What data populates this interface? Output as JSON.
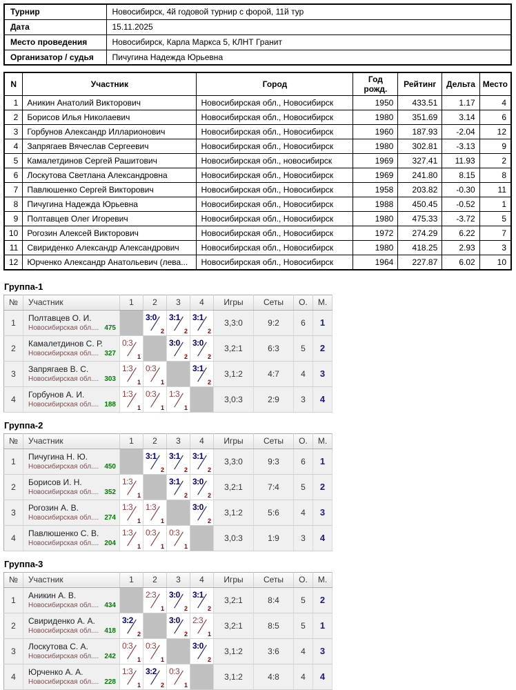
{
  "info": {
    "rows": [
      {
        "label": "Турнир",
        "value": "Новосибирск, 4й годовой турнир с форой, 11й тур"
      },
      {
        "label": "Дата",
        "value": "15.11.2025"
      },
      {
        "label": "Место проведения",
        "value": "Новосибирск, Карла Маркса 5, КЛНТ Гранит"
      },
      {
        "label": "Организатор / судья",
        "value": "Пичугина Надежда Юрьевна"
      }
    ]
  },
  "participants": {
    "headers": [
      "N",
      "Участник",
      "Город",
      "Год рожд.",
      "Рейтинг",
      "Дельта",
      "Место"
    ],
    "rows": [
      {
        "n": "1",
        "name": "Аникин Анатолий Викторович",
        "city": "Новосибирская обл., Новосибирск",
        "year": "1950",
        "rating": "433.51",
        "delta": "1.17",
        "place": "4"
      },
      {
        "n": "2",
        "name": "Борисов Илья Николаевич",
        "city": "Новосибирская обл., Новосибирск",
        "year": "1980",
        "rating": "351.69",
        "delta": "3.14",
        "place": "6"
      },
      {
        "n": "3",
        "name": "Горбунов Александр Илларионович",
        "city": "Новосибирская обл., Новосибирск",
        "year": "1960",
        "rating": "187.93",
        "delta": "-2.04",
        "place": "12"
      },
      {
        "n": "4",
        "name": "Запрягаев Вячеслав Сергеевич",
        "city": "Новосибирская обл., Новосибирск",
        "year": "1980",
        "rating": "302.81",
        "delta": "-3.13",
        "place": "9"
      },
      {
        "n": "5",
        "name": "Камалетдинов Сергей Рашитович",
        "city": "Новосибирская обл., новосибирск",
        "year": "1969",
        "rating": "327.41",
        "delta": "11.93",
        "place": "2"
      },
      {
        "n": "6",
        "name": "Лоскутова Светлана Александровна",
        "city": "Новосибирская обл., Новосибирск",
        "year": "1969",
        "rating": "241.80",
        "delta": "8.15",
        "place": "8"
      },
      {
        "n": "7",
        "name": "Павлюшенко Сергей Викторович",
        "city": "Новосибирская обл., Новосибирск",
        "year": "1958",
        "rating": "203.82",
        "delta": "-0.30",
        "place": "11"
      },
      {
        "n": "8",
        "name": "Пичугина Надежда Юрьевна",
        "city": "Новосибирская обл., Новосибирск",
        "year": "1988",
        "rating": "450.45",
        "delta": "-0.52",
        "place": "1"
      },
      {
        "n": "9",
        "name": "Полтавцев Олег Игоревич",
        "city": "Новосибирская обл., Новосибирск",
        "year": "1980",
        "rating": "475.33",
        "delta": "-3.72",
        "place": "5"
      },
      {
        "n": "10",
        "name": "Рогозин Алексей Викторович",
        "city": "Новосибирская обл., Новосибирск",
        "year": "1972",
        "rating": "274.29",
        "delta": "6.22",
        "place": "7"
      },
      {
        "n": "11",
        "name": "Свириденко Александр Александрович",
        "city": "Новосибирская обл., Новосибирск",
        "year": "1980",
        "rating": "418.25",
        "delta": "2.93",
        "place": "3"
      },
      {
        "n": "12",
        "name": "Юрченко Александр Анатольевич (лева...",
        "city": "Новосибирская обл., Новосибирск",
        "year": "1964",
        "rating": "227.87",
        "delta": "6.02",
        "place": "10"
      }
    ]
  },
  "group_headers": [
    "№",
    "Участник",
    "1",
    "2",
    "3",
    "4",
    "Игры",
    "Сеты",
    "О.",
    "М."
  ],
  "groups": [
    {
      "title": "Группа-1",
      "rows": [
        {
          "num": "1",
          "name": "Полтавцев О. И.",
          "region": "Новосибирская обл....",
          "rating": "475",
          "cells": [
            {
              "type": "self"
            },
            {
              "type": "win",
              "score": "3:0",
              "pts": "2"
            },
            {
              "type": "win",
              "score": "3:1",
              "pts": "2"
            },
            {
              "type": "win",
              "score": "3:1",
              "pts": "2"
            }
          ],
          "games": "3,3:0",
          "sets": "9:2",
          "points": "6",
          "place": "1"
        },
        {
          "num": "2",
          "name": "Камалетдинов С. Р.",
          "region": "Новосибирская обл....",
          "rating": "327",
          "cells": [
            {
              "type": "loss",
              "score": "0:3",
              "pts": "1"
            },
            {
              "type": "self"
            },
            {
              "type": "win",
              "score": "3:0",
              "pts": "2"
            },
            {
              "type": "win",
              "score": "3:0",
              "pts": "2"
            }
          ],
          "games": "3,2:1",
          "sets": "6:3",
          "points": "5",
          "place": "2"
        },
        {
          "num": "3",
          "name": "Запрягаев В. С.",
          "region": "Новосибирская обл....",
          "rating": "303",
          "cells": [
            {
              "type": "loss",
              "score": "1:3",
              "pts": "1"
            },
            {
              "type": "loss",
              "score": "0:3",
              "pts": "1"
            },
            {
              "type": "self"
            },
            {
              "type": "win",
              "score": "3:1",
              "pts": "2"
            }
          ],
          "games": "3,1:2",
          "sets": "4:7",
          "points": "4",
          "place": "3"
        },
        {
          "num": "4",
          "name": "Горбунов А. И.",
          "region": "Новосибирская обл....",
          "rating": "188",
          "cells": [
            {
              "type": "loss",
              "score": "1:3",
              "pts": "1"
            },
            {
              "type": "loss",
              "score": "0:3",
              "pts": "1"
            },
            {
              "type": "loss",
              "score": "1:3",
              "pts": "1"
            },
            {
              "type": "self"
            }
          ],
          "games": "3,0:3",
          "sets": "2:9",
          "points": "3",
          "place": "4"
        }
      ]
    },
    {
      "title": "Группа-2",
      "rows": [
        {
          "num": "1",
          "name": "Пичугина Н. Ю.",
          "region": "Новосибирская обл....",
          "rating": "450",
          "cells": [
            {
              "type": "self"
            },
            {
              "type": "win",
              "score": "3:1",
              "pts": "2"
            },
            {
              "type": "win",
              "score": "3:1",
              "pts": "2"
            },
            {
              "type": "win",
              "score": "3:1",
              "pts": "2"
            }
          ],
          "games": "3,3:0",
          "sets": "9:3",
          "points": "6",
          "place": "1"
        },
        {
          "num": "2",
          "name": "Борисов И. Н.",
          "region": "Новосибирская обл....",
          "rating": "352",
          "cells": [
            {
              "type": "loss",
              "score": "1:3",
              "pts": "1"
            },
            {
              "type": "self"
            },
            {
              "type": "win",
              "score": "3:1",
              "pts": "2"
            },
            {
              "type": "win",
              "score": "3:0",
              "pts": "2"
            }
          ],
          "games": "3,2:1",
          "sets": "7:4",
          "points": "5",
          "place": "2"
        },
        {
          "num": "3",
          "name": "Рогозин А. В.",
          "region": "Новосибирская обл....",
          "rating": "274",
          "cells": [
            {
              "type": "loss",
              "score": "1:3",
              "pts": "1"
            },
            {
              "type": "loss",
              "score": "1:3",
              "pts": "1"
            },
            {
              "type": "self"
            },
            {
              "type": "win",
              "score": "3:0",
              "pts": "2"
            }
          ],
          "games": "3,1:2",
          "sets": "5:6",
          "points": "4",
          "place": "3"
        },
        {
          "num": "4",
          "name": "Павлюшенко С. В.",
          "region": "Новосибирская обл....",
          "rating": "204",
          "cells": [
            {
              "type": "loss",
              "score": "1:3",
              "pts": "1"
            },
            {
              "type": "loss",
              "score": "0:3",
              "pts": "1"
            },
            {
              "type": "loss",
              "score": "0:3",
              "pts": "1"
            },
            {
              "type": "self"
            }
          ],
          "games": "3,0:3",
          "sets": "1:9",
          "points": "3",
          "place": "4"
        }
      ]
    },
    {
      "title": "Группа-3",
      "rows": [
        {
          "num": "1",
          "name": "Аникин А. В.",
          "region": "Новосибирская обл....",
          "rating": "434",
          "cells": [
            {
              "type": "self"
            },
            {
              "type": "loss",
              "score": "2:3",
              "pts": "1"
            },
            {
              "type": "win",
              "score": "3:0",
              "pts": "2"
            },
            {
              "type": "win",
              "score": "3:1",
              "pts": "2"
            }
          ],
          "games": "3,2:1",
          "sets": "8:4",
          "points": "5",
          "place": "2"
        },
        {
          "num": "2",
          "name": "Свириденко А. А.",
          "region": "Новосибирская обл....",
          "rating": "418",
          "cells": [
            {
              "type": "win",
              "score": "3:2",
              "pts": "2"
            },
            {
              "type": "self"
            },
            {
              "type": "win",
              "score": "3:0",
              "pts": "2"
            },
            {
              "type": "loss",
              "score": "2:3",
              "pts": "1"
            }
          ],
          "games": "3,2:1",
          "sets": "8:5",
          "points": "5",
          "place": "1"
        },
        {
          "num": "3",
          "name": "Лоскутова С. А.",
          "region": "Новосибирская обл....",
          "rating": "242",
          "cells": [
            {
              "type": "loss",
              "score": "0:3",
              "pts": "1"
            },
            {
              "type": "loss",
              "score": "0:3",
              "pts": "1"
            },
            {
              "type": "self"
            },
            {
              "type": "win",
              "score": "3:0",
              "pts": "2"
            }
          ],
          "games": "3,1:2",
          "sets": "3:6",
          "points": "4",
          "place": "3"
        },
        {
          "num": "4",
          "name": "Юрченко А. А.",
          "region": "Новосибирская обл....",
          "rating": "228",
          "cells": [
            {
              "type": "loss",
              "score": "1:3",
              "pts": "1"
            },
            {
              "type": "win",
              "score": "3:2",
              "pts": "2"
            },
            {
              "type": "loss",
              "score": "0:3",
              "pts": "1"
            },
            {
              "type": "self"
            }
          ],
          "games": "3,1:2",
          "sets": "4:8",
          "points": "4",
          "place": "4"
        }
      ]
    }
  ]
}
